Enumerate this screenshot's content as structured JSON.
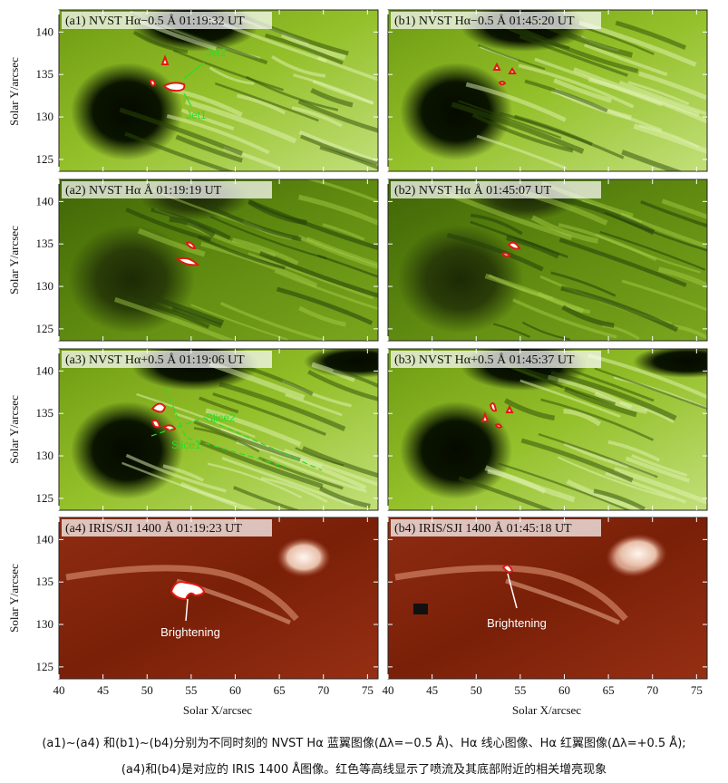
{
  "panels": [
    {
      "id": "a1",
      "title": "(a1) NVST Hα−0.5 Å  01:19:32 UT",
      "type": "blue"
    },
    {
      "id": "b1",
      "title": "(b1) NVST Hα−0.5 Å  01:45:20 UT",
      "type": "blue"
    },
    {
      "id": "a2",
      "title": "(a2) NVST Hα Å  01:19:19 UT",
      "type": "center"
    },
    {
      "id": "b2",
      "title": "(b2) NVST Hα Å  01:45:07 UT",
      "type": "center"
    },
    {
      "id": "a3",
      "title": "(a3) NVST Hα+0.5 Å  01:19:06 UT",
      "type": "red"
    },
    {
      "id": "b3",
      "title": "(b3) NVST Hα+0.5 Å  01:45:37 UT",
      "type": "red"
    },
    {
      "id": "a4",
      "title": "(a4) IRIS/SJI 1400 Å  01:19:23 UT",
      "type": "iris"
    },
    {
      "id": "b4",
      "title": "(b4) IRIS/SJI 1400 Å  01:45:18 UT",
      "type": "iris"
    }
  ],
  "annotations": {
    "jet1": "Jet1",
    "jet2": "Jet2",
    "slice1": "Slice1",
    "slice2": "Slice2",
    "brightening": "Brightening"
  },
  "axes": {
    "ylabel": "Solar Y/arcsec",
    "xlabel": "Solar X/arcsec",
    "yticks": [
      "125",
      "130",
      "135",
      "140"
    ],
    "xticks": [
      "40",
      "45",
      "50",
      "55",
      "60",
      "65",
      "70",
      "75"
    ]
  },
  "caption": {
    "line1": "(a1)~(a4) 和(b1)~(b4)分别为不同时刻的 NVST Hα 蓝翼图像(Δλ=−0.5 Å)、Hα 线心图像、Hα 红翼图像(Δλ=+0.5 Å);",
    "line2": "(a4)和(b4)是对应的 IRIS 1400 Å图像。红色等高线显示了喷流及其底部附近的相关增亮现象"
  }
}
